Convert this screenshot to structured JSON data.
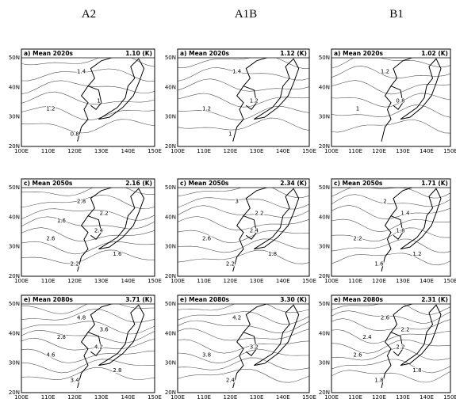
{
  "columns": [
    "A2",
    "A1B",
    "B1"
  ],
  "yticks": [
    "50N",
    "40N",
    "30N",
    "20N"
  ],
  "xticks": [
    "100E",
    "110E",
    "120E",
    "130E",
    "140E",
    "150E"
  ],
  "panels": [
    [
      {
        "label": "a) Mean 2020s",
        "value": "1.10 (K)",
        "contours": [
          "1.4",
          "1.2",
          "1",
          "0.8"
        ]
      },
      {
        "label": "a) Mean 2020s",
        "value": "1.12 (K)",
        "contours": [
          "1.4",
          "1.2",
          "1.2",
          "1"
        ]
      },
      {
        "label": "a) Mean 2020s",
        "value": "1.02 (K)",
        "contours": [
          "1.2",
          "1",
          "0.8"
        ]
      }
    ],
    [
      {
        "label": "c) Mean 2050s",
        "value": "2.16 (K)",
        "contours": [
          "2.8",
          "2.6",
          "2.4",
          "2.2",
          "2.2",
          "1.6",
          "1.6"
        ]
      },
      {
        "label": "c) Mean 2050s",
        "value": "2.34 (K)",
        "contours": [
          "3",
          "2.6",
          "2.4",
          "2.2",
          "2.2",
          "1.8"
        ]
      },
      {
        "label": "c) Mean 2050s",
        "value": "1.71 (K)",
        "contours": [
          "2",
          "2.2",
          "1.8",
          "1.6",
          "1.4",
          "1.2"
        ]
      }
    ],
    [
      {
        "label": "e) Mean 2080s",
        "value": "3.71 (K)",
        "contours": [
          "4.8",
          "4.6",
          "4.2",
          "3.4",
          "3.6",
          "2.8",
          "2.8"
        ]
      },
      {
        "label": "e) Mean 2080s",
        "value": "3.30 (K)",
        "contours": [
          "4.2",
          "3.8",
          "3.2",
          "2.4"
        ]
      },
      {
        "label": "e) Mean 2080s",
        "value": "2.31 (K)",
        "contours": [
          "2.6",
          "2.6",
          "2.2",
          "1.8",
          "2.2",
          "1.8",
          "2.4"
        ]
      }
    ]
  ]
}
